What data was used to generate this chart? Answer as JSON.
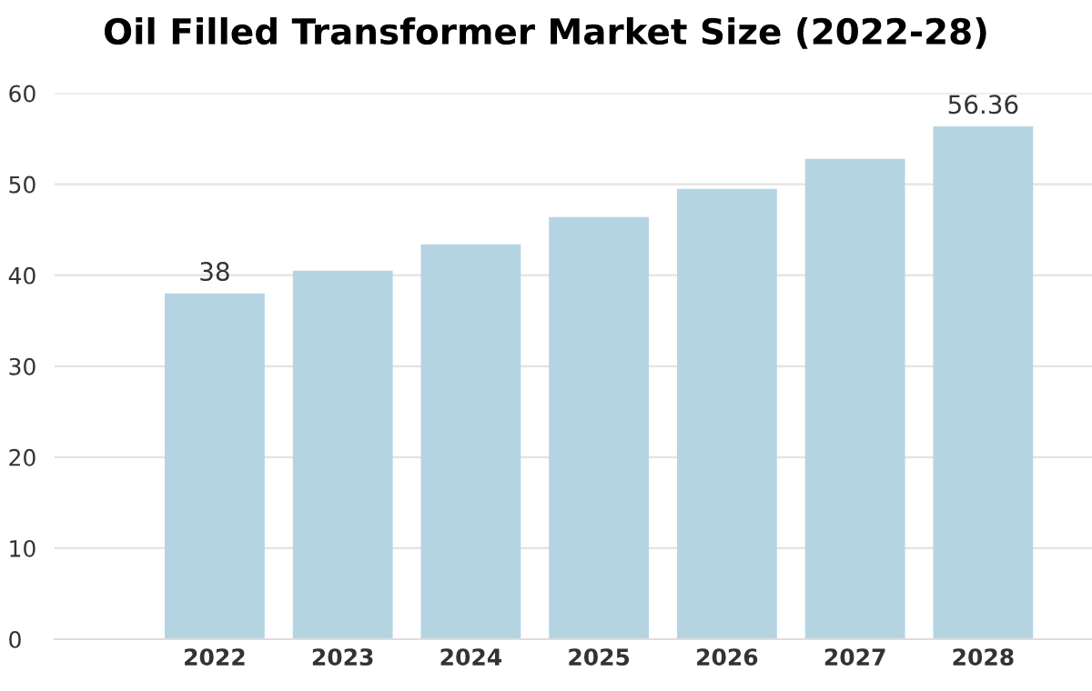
{
  "chart_data": {
    "type": "bar",
    "title": "Oil Filled Transformer Market Size (2022-28)",
    "categories": [
      "2022",
      "2023",
      "2024",
      "2025",
      "2026",
      "2027",
      "2028"
    ],
    "values": [
      38,
      40.5,
      43.4,
      46.4,
      49.5,
      52.8,
      56.36
    ],
    "value_labels": [
      "38",
      null,
      null,
      null,
      null,
      null,
      "56.36"
    ],
    "color": "#b4d4e2",
    "ylim": [
      0,
      60
    ],
    "yticks": [
      0,
      10,
      20,
      30,
      40,
      50,
      60
    ],
    "grid": "y",
    "legend": false
  }
}
